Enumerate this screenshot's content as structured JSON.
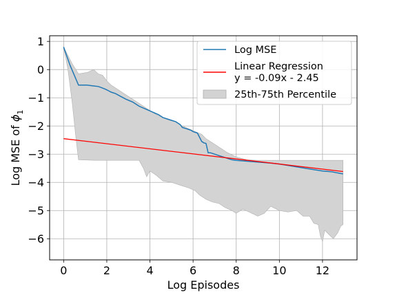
{
  "chart_data": {
    "type": "line",
    "xlabel": "Log Episodes",
    "ylabel_main": "Log MSE of ",
    "ylabel_symbol": "ϕ",
    "ylabel_subscript": "1",
    "xlim": [
      -0.65,
      13.6
    ],
    "ylim": [
      -6.75,
      1.2
    ],
    "xticks": [
      0,
      2,
      4,
      6,
      8,
      10,
      12
    ],
    "yticks": [
      1,
      0,
      -1,
      -2,
      -3,
      -4,
      -5,
      -6
    ],
    "grid": true,
    "legend_placement": "top-right",
    "colors": {
      "log_mse": "#1f77b4",
      "regression": "#ff0000",
      "band_fill": "#d3d3d3",
      "band_edge": "#b0b0b0",
      "grid": "#b0b0b0"
    },
    "series": [
      {
        "name": "Log MSE",
        "kind": "line",
        "x": [
          0,
          0.3,
          0.69,
          1.1,
          1.39,
          1.61,
          1.79,
          1.95,
          2.08,
          2.2,
          2.4,
          2.64,
          2.89,
          3.2,
          3.5,
          3.8,
          4.1,
          4.4,
          4.6,
          4.8,
          5.0,
          5.2,
          5.3,
          5.4,
          5.5,
          5.7,
          5.9,
          6.0,
          6.2,
          6.4,
          6.5,
          6.6,
          6.7,
          6.8,
          7.0,
          7.2,
          7.4,
          7.6,
          7.8,
          8.0,
          8.2,
          8.5,
          8.8,
          9.0,
          9.3,
          9.6,
          10.0,
          10.4,
          10.8,
          11.2,
          11.6,
          12.0,
          12.4,
          12.8,
          12.95
        ],
        "y": [
          0.8,
          0.15,
          -0.55,
          -0.55,
          -0.58,
          -0.6,
          -0.65,
          -0.7,
          -0.75,
          -0.8,
          -0.85,
          -0.95,
          -1.05,
          -1.15,
          -1.3,
          -1.4,
          -1.5,
          -1.6,
          -1.7,
          -1.75,
          -1.8,
          -1.85,
          -1.9,
          -1.95,
          -2.05,
          -2.1,
          -2.15,
          -2.2,
          -2.25,
          -2.55,
          -2.6,
          -2.62,
          -2.95,
          -2.95,
          -3.0,
          -3.05,
          -3.1,
          -3.15,
          -3.2,
          -3.22,
          -3.23,
          -3.25,
          -3.27,
          -3.28,
          -3.3,
          -3.32,
          -3.35,
          -3.4,
          -3.45,
          -3.5,
          -3.55,
          -3.6,
          -3.62,
          -3.68,
          -3.7
        ]
      },
      {
        "name": "Linear Regression",
        "equation": "y = -0.09x - 2.45",
        "kind": "line",
        "slope": -0.09,
        "intercept": -2.45,
        "x": [
          0,
          12.95
        ]
      },
      {
        "name": "25th-75th Percentile",
        "kind": "band",
        "upper_x": [
          0,
          0.4,
          0.69,
          1.1,
          1.39,
          1.6,
          1.8,
          2.0,
          2.2,
          2.5,
          2.8,
          3.1,
          3.4,
          3.7,
          4.0,
          4.3,
          4.6,
          4.9,
          5.2,
          5.5,
          5.8,
          6.1,
          6.4,
          6.6,
          6.8,
          7.0,
          7.3,
          7.6,
          8.0,
          8.5,
          9.0,
          9.5,
          10.0,
          10.5,
          11.0,
          11.5,
          12.0,
          12.5,
          12.95
        ],
        "upper_y": [
          0.8,
          0.2,
          -0.15,
          -0.1,
          0.0,
          -0.15,
          -0.2,
          -0.4,
          -0.55,
          -0.7,
          -0.85,
          -1.0,
          -1.15,
          -1.3,
          -1.45,
          -1.6,
          -1.7,
          -1.8,
          -1.85,
          -2.0,
          -2.1,
          -2.2,
          -2.3,
          -2.45,
          -2.55,
          -2.65,
          -2.8,
          -2.95,
          -3.1,
          -3.2,
          -3.22,
          -3.22,
          -3.22,
          -3.22,
          -3.22,
          -3.22,
          -3.22,
          -3.22,
          -3.22
        ],
        "lower_x": [
          0,
          0.2,
          0.4,
          0.55,
          0.69,
          1.5,
          2.5,
          3.0,
          3.5,
          3.7,
          3.85,
          4.0,
          4.3,
          4.6,
          5.0,
          5.4,
          5.8,
          6.1,
          6.3,
          6.6,
          6.9,
          7.2,
          7.5,
          7.8,
          8.0,
          8.3,
          8.6,
          9.0,
          9.3,
          9.6,
          10.0,
          10.4,
          10.8,
          11.1,
          11.4,
          11.6,
          11.8,
          11.9,
          12.0,
          12.1,
          12.3,
          12.5,
          12.7,
          12.85,
          12.95
        ],
        "lower_y": [
          0.8,
          0.0,
          -1.2,
          -2.3,
          -3.2,
          -3.22,
          -3.22,
          -3.22,
          -3.22,
          -3.5,
          -3.8,
          -3.6,
          -3.75,
          -3.95,
          -4.0,
          -4.1,
          -4.2,
          -4.3,
          -4.45,
          -4.6,
          -4.7,
          -4.75,
          -4.9,
          -5.0,
          -5.1,
          -4.95,
          -5.05,
          -5.2,
          -5.1,
          -4.85,
          -5.0,
          -5.05,
          -5.0,
          -5.2,
          -5.2,
          -5.45,
          -5.5,
          -5.9,
          -6.1,
          -5.7,
          -5.85,
          -6.0,
          -5.8,
          -5.55,
          -5.5
        ]
      }
    ]
  }
}
